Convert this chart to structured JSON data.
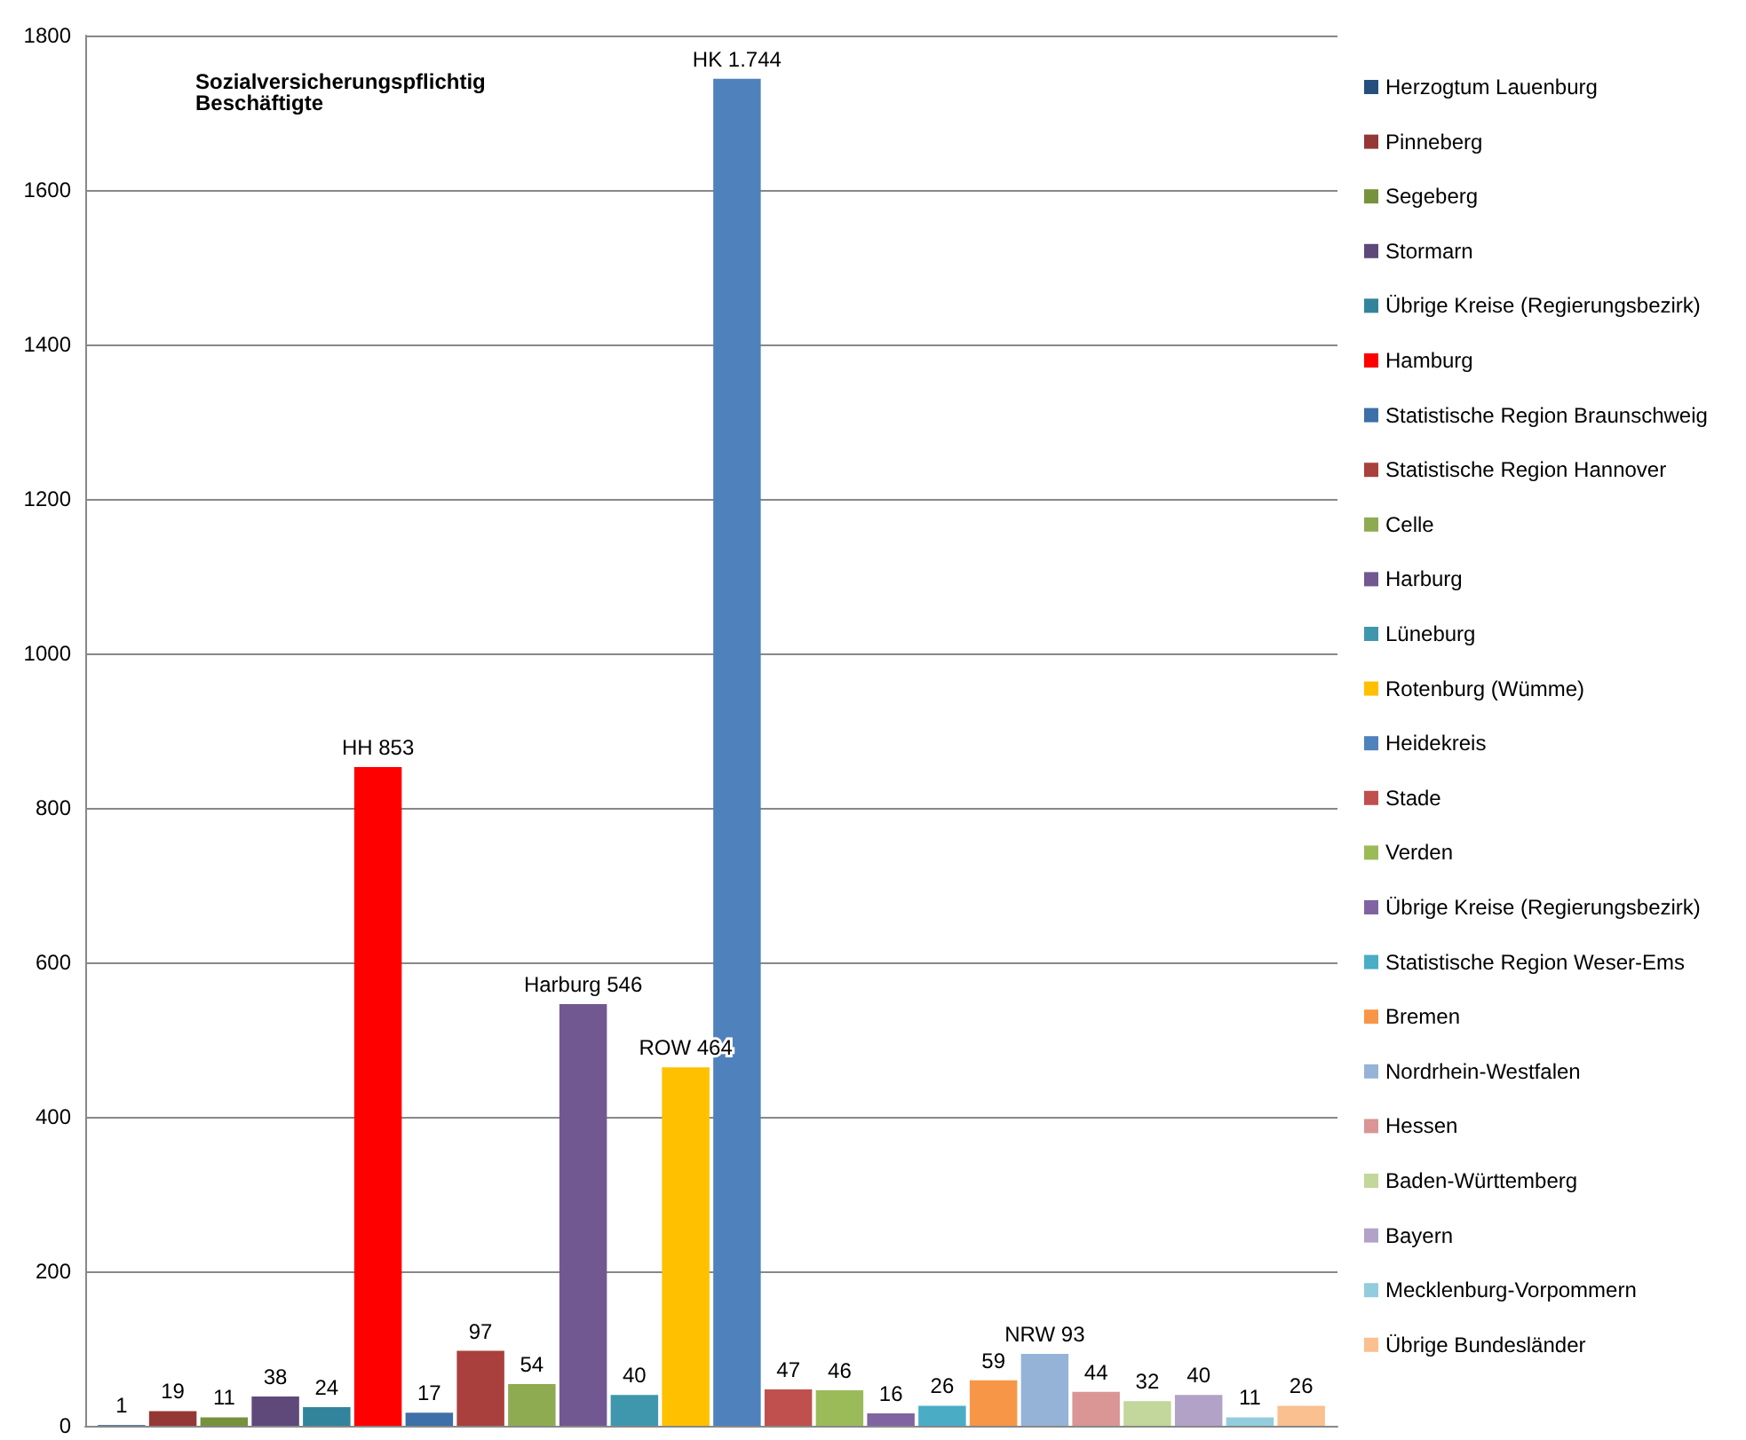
{
  "chart_data": {
    "type": "bar",
    "title": "Sozialversicherungspflichtig Beschäftigte",
    "categories": [
      null
    ],
    "ylim": [
      0,
      1800
    ],
    "yticks": [
      0,
      200,
      400,
      600,
      800,
      1000,
      1200,
      1400,
      1600,
      1800
    ],
    "grid": "y",
    "legend": "right",
    "series": [
      {
        "name": "Herzogtum Lauenburg",
        "color": "#254f7d",
        "values": [
          1
        ],
        "value_labels": [
          "1"
        ]
      },
      {
        "name": "Pinneberg",
        "color": "#953735",
        "values": [
          19
        ],
        "value_labels": [
          "19"
        ]
      },
      {
        "name": "Segeberg",
        "color": "#76923c",
        "values": [
          11
        ],
        "value_labels": [
          "11"
        ]
      },
      {
        "name": "Stormarn",
        "color": "#5f497a",
        "values": [
          38
        ],
        "value_labels": [
          "38"
        ]
      },
      {
        "name": "Übrige Kreise (Regierungsbezirk)",
        "color": "#31849b",
        "values": [
          24
        ],
        "value_labels": [
          "24"
        ]
      },
      {
        "name": "Hamburg",
        "color": "#ff0000",
        "values": [
          853
        ],
        "value_labels": [
          "HH 853"
        ]
      },
      {
        "name": "Statistische Region Braunschweig",
        "color": "#3d6fa8",
        "values": [
          17
        ],
        "value_labels": [
          "17"
        ]
      },
      {
        "name": "Statistische Region Hannover",
        "color": "#a9403d",
        "values": [
          97
        ],
        "value_labels": [
          "97"
        ]
      },
      {
        "name": "Celle",
        "color": "#8eab52",
        "values": [
          54
        ],
        "value_labels": [
          "54"
        ]
      },
      {
        "name": "Harburg",
        "color": "#725891",
        "values": [
          546
        ],
        "value_labels": [
          "Harburg 546"
        ]
      },
      {
        "name": "Lüneburg",
        "color": "#3f97ad",
        "values": [
          40
        ],
        "value_labels": [
          "40"
        ]
      },
      {
        "name": "Rotenburg (Wümme)",
        "color": "#ffc000",
        "values": [
          464
        ],
        "value_labels": [
          "ROW 464"
        ]
      },
      {
        "name": "Heidekreis",
        "color": "#4f81bd",
        "values": [
          1744
        ],
        "value_labels": [
          "HK 1.744"
        ]
      },
      {
        "name": "Stade",
        "color": "#c0504d",
        "values": [
          47
        ],
        "value_labels": [
          "47"
        ]
      },
      {
        "name": "Verden",
        "color": "#9bbb59",
        "values": [
          46
        ],
        "value_labels": [
          "46"
        ]
      },
      {
        "name": "Übrige Kreise (Regierungsbezirk)",
        "color": "#8064a2",
        "values": [
          16
        ],
        "value_labels": [
          "16"
        ]
      },
      {
        "name": "Statistische Region Weser-Ems",
        "color": "#4bacc6",
        "values": [
          26
        ],
        "value_labels": [
          "26"
        ]
      },
      {
        "name": "Bremen",
        "color": "#f79646",
        "values": [
          59
        ],
        "value_labels": [
          "59"
        ]
      },
      {
        "name": "Nordrhein-Westfalen",
        "color": "#95b3d7",
        "values": [
          93
        ],
        "value_labels": [
          "NRW 93"
        ]
      },
      {
        "name": "Hessen",
        "color": "#d99694",
        "values": [
          44
        ],
        "value_labels": [
          "44"
        ]
      },
      {
        "name": "Baden-Württemberg",
        "color": "#c3d69b",
        "values": [
          32
        ],
        "value_labels": [
          "32"
        ]
      },
      {
        "name": "Bayern",
        "color": "#b2a2c7",
        "values": [
          40
        ],
        "value_labels": [
          "40"
        ]
      },
      {
        "name": "Mecklenburg-Vorpommern",
        "color": "#93cddd",
        "values": [
          11
        ],
        "value_labels": [
          "11"
        ]
      },
      {
        "name": "Übrige Bundesländer",
        "color": "#fac090",
        "values": [
          26
        ],
        "value_labels": [
          "26"
        ]
      }
    ]
  }
}
